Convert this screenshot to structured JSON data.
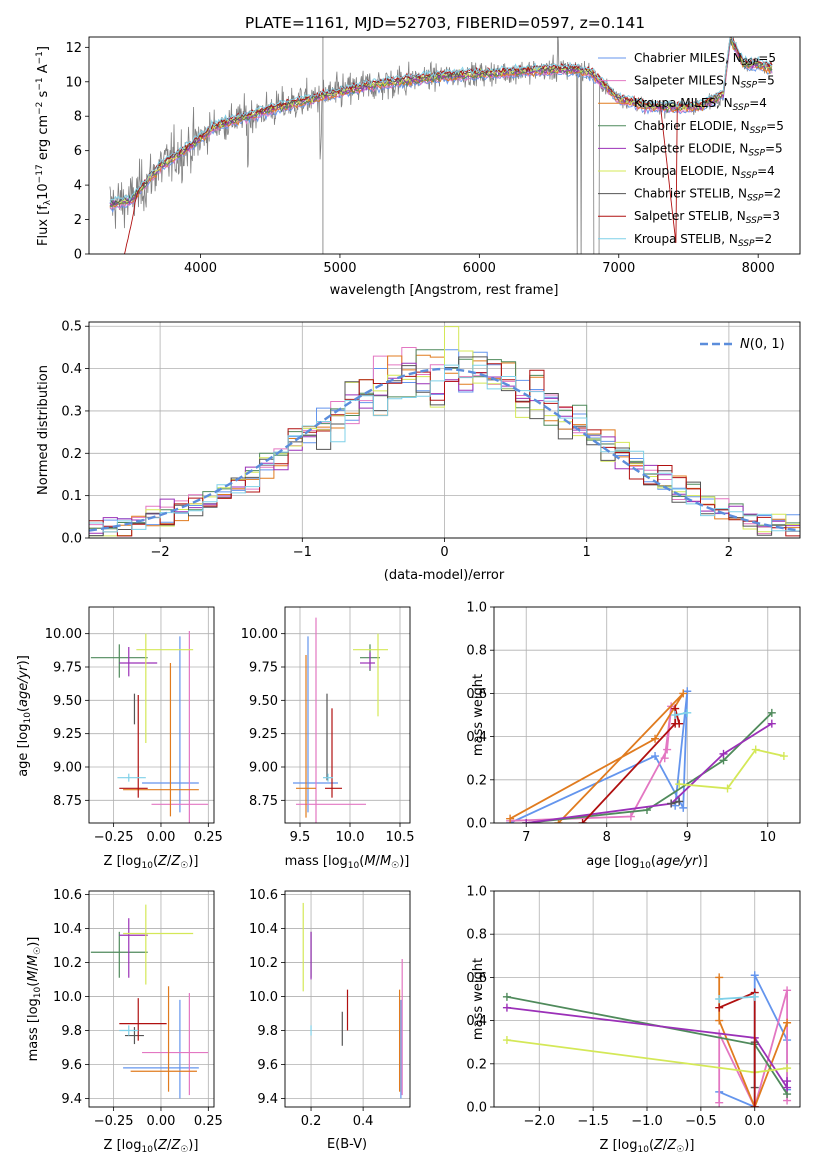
{
  "figure": {
    "title": "PLATE=1161, MJD=52703, FIBERID=0597, z=0.141"
  },
  "series_styles": [
    {
      "name": "Chabrier MILES, N_SSP=5",
      "color": "#6495ED"
    },
    {
      "name": "Salpeter MILES, N_SSP=5",
      "color": "#E377C2"
    },
    {
      "name": "Kroupa MILES, N_SSP=4",
      "color": "#E07B1F"
    },
    {
      "name": "Chabrier ELODIE, N_SSP=5",
      "color": "#4F8A5B"
    },
    {
      "name": "Salpeter ELODIE, N_SSP=5",
      "color": "#9B30B8"
    },
    {
      "name": "Kroupa ELODIE, N_SSP=4",
      "color": "#D4E857"
    },
    {
      "name": "Chabrier STELIB, N_SSP=2",
      "color": "#555555"
    },
    {
      "name": "Salpeter STELIB, N_SSP=3",
      "color": "#B01010"
    },
    {
      "name": "Kroupa STELIB, N_SSP=2",
      "color": "#7FD0E8"
    }
  ],
  "chart_data": [
    {
      "id": "spectrum",
      "type": "line",
      "title": "PLATE=1161, MJD=52703, FIBERID=0597, z=0.141",
      "xlabel": "wavelength [Angstrom, rest frame]",
      "ylabel": "Flux [f_λ 10^-17 erg cm^-2 s^-1 A^-1]",
      "xlim": [
        3200,
        8300
      ],
      "ylim": [
        0,
        12.6
      ],
      "xticks": [
        4000,
        5000,
        6000,
        7000,
        8000
      ],
      "yticks": [
        0,
        2,
        4,
        6,
        8,
        10,
        12
      ],
      "grid": false,
      "legend_position": "right",
      "data_color": "#808080",
      "series": [
        {
          "name": "Chabrier MILES",
          "nssp": "5"
        },
        {
          "name": "Salpeter MILES",
          "nssp": "5"
        },
        {
          "name": "Kroupa MILES",
          "nssp": "4"
        },
        {
          "name": "Chabrier ELODIE",
          "nssp": "5"
        },
        {
          "name": "Salpeter ELODIE",
          "nssp": "5"
        },
        {
          "name": "Kroupa ELODIE",
          "nssp": "4"
        },
        {
          "name": "Chabrier STELIB",
          "nssp": "2"
        },
        {
          "name": "Salpeter STELIB",
          "nssp": "3"
        },
        {
          "name": "Kroupa STELIB",
          "nssp": "2"
        }
      ],
      "continuum": {
        "x": [
          3350,
          3500,
          3700,
          3900,
          4100,
          4300,
          4500,
          4700,
          4900,
          5100,
          5300,
          5500,
          5700,
          5900,
          6100,
          6300,
          6500,
          6600,
          6700,
          6800,
          6900,
          7000,
          7200,
          7400,
          7600,
          7750,
          7800,
          7900,
          8000,
          8100
        ],
        "y": [
          2.9,
          3.1,
          5.0,
          6.1,
          7.4,
          7.9,
          8.4,
          8.8,
          9.2,
          9.6,
          9.9,
          10.1,
          10.3,
          10.4,
          10.5,
          10.6,
          10.7,
          10.7,
          10.7,
          10.5,
          9.8,
          9.0,
          8.6,
          8.5,
          8.6,
          9.3,
          12.5,
          11.0,
          11.0,
          10.8
        ]
      }
    },
    {
      "id": "residuals",
      "type": "histogram",
      "xlabel": "(data-model)/error",
      "ylabel": "Normed distribution",
      "xlim": [
        -2.5,
        2.5
      ],
      "ylim": [
        0,
        0.51
      ],
      "xticks": [
        -2,
        -1,
        0,
        1,
        2
      ],
      "yticks": [
        0.0,
        0.1,
        0.2,
        0.3,
        0.4,
        0.5
      ],
      "grid": true,
      "legend_position": "top-right",
      "reference_curve": {
        "name": "N(0,1)",
        "mean": 0,
        "sigma": 1,
        "color": "#5B8DDB"
      },
      "bin_width": 0.1
    },
    {
      "id": "age_vs_Z",
      "type": "errorbar",
      "xlabel": "Z [log10(Z/Z☉)]",
      "ylabel": "age [log10(age/yr)]",
      "xlim": [
        -0.38,
        0.28
      ],
      "ylim": [
        8.58,
        10.2
      ],
      "xticks": [
        -0.25,
        0.0,
        0.25
      ],
      "yticks": [
        8.75,
        9.0,
        9.25,
        9.5,
        9.75,
        10.0
      ],
      "grid": true,
      "points": [
        {
          "series": 0,
          "x": 0.1,
          "y": 8.88,
          "xerr": [
            0.2,
            0.1
          ],
          "yerr": [
            0.22,
            1.1
          ]
        },
        {
          "series": 1,
          "x": 0.15,
          "y": 8.72,
          "xerr": [
            0.2,
            0.1
          ],
          "yerr": [
            0.15,
            1.3
          ]
        },
        {
          "series": 2,
          "x": 0.05,
          "y": 8.83,
          "xerr": [
            0.25,
            0.15
          ],
          "yerr": [
            0.2,
            0.95
          ]
        },
        {
          "series": 3,
          "x": -0.22,
          "y": 9.82,
          "xerr": [
            0.15,
            0.15
          ],
          "yerr": [
            0.15,
            0.1
          ]
        },
        {
          "series": 4,
          "x": -0.17,
          "y": 9.78,
          "xerr": [
            0.05,
            0.15
          ],
          "yerr": [
            0.1,
            0.12
          ]
        },
        {
          "series": 5,
          "x": -0.08,
          "y": 9.88,
          "xerr": [
            0.05,
            0.25
          ],
          "yerr": [
            0.7,
            0.12
          ]
        },
        {
          "series": 6,
          "x": -0.14,
          "y": 9.5,
          "xerr": [
            0.0,
            0.0
          ],
          "yerr": [
            0.18,
            0.05
          ]
        },
        {
          "series": 7,
          "x": -0.12,
          "y": 8.84,
          "xerr": [
            0.1,
            0.05
          ],
          "yerr": [
            0.07,
            0.7
          ]
        },
        {
          "series": 8,
          "x": -0.17,
          "y": 8.92,
          "xerr": [
            0.06,
            0.09
          ],
          "yerr": [
            0.03,
            0.03
          ]
        }
      ]
    },
    {
      "id": "age_vs_mass",
      "type": "errorbar",
      "xlabel": "mass [log10(M/M☉)]",
      "xlim": [
        9.35,
        10.6
      ],
      "ylim": [
        8.58,
        10.2
      ],
      "xticks": [
        9.5,
        10.0,
        10.5
      ],
      "yticks": [
        8.75,
        9.0,
        9.25,
        9.5,
        9.75,
        10.0
      ],
      "grid": true,
      "points": [
        {
          "series": 0,
          "x": 9.58,
          "y": 8.88,
          "xerr": [
            0.15,
            0.3
          ],
          "yerr": [
            0.22,
            1.1
          ]
        },
        {
          "series": 1,
          "x": 9.66,
          "y": 8.72,
          "xerr": [
            0.2,
            0.5
          ],
          "yerr": [
            0.15,
            1.4
          ]
        },
        {
          "series": 2,
          "x": 9.56,
          "y": 8.84,
          "xerr": [
            0.1,
            0.1
          ],
          "yerr": [
            0.22,
            1.0
          ]
        },
        {
          "series": 3,
          "x": 10.2,
          "y": 9.82,
          "xerr": [
            0.1,
            0.1
          ],
          "yerr": [
            0.1,
            0.1
          ]
        },
        {
          "series": 4,
          "x": 10.2,
          "y": 9.78,
          "xerr": [
            0.1,
            0.05
          ],
          "yerr": [
            0.05,
            0.08
          ]
        },
        {
          "series": 5,
          "x": 10.28,
          "y": 9.88,
          "xerr": [
            0.25,
            0.1
          ],
          "yerr": [
            0.5,
            0.12
          ]
        },
        {
          "series": 6,
          "x": 9.77,
          "y": 9.5,
          "xerr": [
            0.0,
            0.0
          ],
          "yerr": [
            0.6,
            0.05
          ]
        },
        {
          "series": 7,
          "x": 9.82,
          "y": 8.84,
          "xerr": [
            0.07,
            0.1
          ],
          "yerr": [
            0.07,
            0.6
          ]
        },
        {
          "series": 8,
          "x": 9.78,
          "y": 8.92,
          "xerr": [
            0.05,
            0.05
          ],
          "yerr": [
            0.03,
            0.03
          ]
        }
      ]
    },
    {
      "id": "weight_vs_age",
      "type": "line",
      "xlabel": "age [log10(age/yr)]",
      "ylabel": "mass weight",
      "xlim": [
        6.6,
        10.4
      ],
      "ylim": [
        0,
        1
      ],
      "xticks": [
        7,
        8,
        9,
        10
      ],
      "yticks": [
        0.0,
        0.2,
        0.4,
        0.6,
        0.8,
        1.0
      ],
      "grid": true,
      "series": [
        {
          "series": 0,
          "x": [
            6.8,
            8.6,
            8.95,
            9.0,
            8.85
          ],
          "y": [
            0.0,
            0.31,
            0.07,
            0.61,
            0.08
          ]
        },
        {
          "series": 1,
          "x": 6.8,
          "y": 0.0,
          "xlist": [
            6.8,
            8.3,
            8.75,
            8.8,
            8.72
          ],
          "ylist": [
            0.01,
            0.03,
            0.34,
            0.54,
            0.3
          ]
        },
        {
          "series": 2,
          "x": [
            6.8,
            8.6,
            8.95,
            7.4
          ],
          "y": [
            0.02,
            0.39,
            0.6,
            0.0
          ]
        },
        {
          "series": 3,
          "x": [
            7.0,
            8.5,
            9.45,
            10.05
          ],
          "y": [
            0.0,
            0.06,
            0.29,
            0.51
          ]
        },
        {
          "series": 4,
          "x": [
            7.0,
            8.8,
            9.45,
            10.05
          ],
          "y": [
            0.0,
            0.09,
            0.32,
            0.46
          ]
        },
        {
          "series": 5,
          "x": [
            8.9,
            9.5,
            9.85,
            10.2
          ],
          "y": [
            0.18,
            0.16,
            0.34,
            0.31
          ]
        },
        {
          "series": 6,
          "x": [
            8.8,
            8.9
          ],
          "y": [
            0.09,
            0.1
          ]
        },
        {
          "series": 7,
          "x": [
            7.7,
            8.85,
            8.85,
            8.9
          ],
          "y": [
            0.0,
            0.46,
            0.53,
            0.46
          ]
        },
        {
          "series": 8,
          "x": [
            8.85,
            9.0
          ],
          "y": [
            0.5,
            0.51
          ]
        }
      ]
    },
    {
      "id": "mass_vs_Z",
      "type": "errorbar",
      "xlabel": "Z [log10(Z/Z☉)]",
      "ylabel": "mass [log10(M/M☉)]",
      "xlim": [
        -0.38,
        0.28
      ],
      "ylim": [
        9.35,
        10.62
      ],
      "xticks": [
        -0.25,
        0.0,
        0.25
      ],
      "yticks": [
        9.4,
        9.6,
        9.8,
        10.0,
        10.2,
        10.4,
        10.6
      ],
      "grid": true,
      "points": [
        {
          "series": 0,
          "x": 0.1,
          "y": 9.58,
          "xerr": [
            0.3,
            0.1
          ],
          "yerr": [
            0.18,
            0.4
          ]
        },
        {
          "series": 1,
          "x": 0.15,
          "y": 9.67,
          "xerr": [
            0.25,
            0.1
          ],
          "yerr": [
            0.25,
            0.35
          ]
        },
        {
          "series": 2,
          "x": 0.04,
          "y": 9.56,
          "xerr": [
            0.2,
            0.15
          ],
          "yerr": [
            0.12,
            0.5
          ]
        },
        {
          "series": 3,
          "x": -0.22,
          "y": 10.26,
          "xerr": [
            0.15,
            0.15
          ],
          "yerr": [
            0.15,
            0.12
          ]
        },
        {
          "series": 4,
          "x": -0.17,
          "y": 10.36,
          "xerr": [
            0.05,
            0.1
          ],
          "yerr": [
            0.25,
            0.1
          ]
        },
        {
          "series": 5,
          "x": -0.08,
          "y": 10.37,
          "xerr": [
            0.12,
            0.25
          ],
          "yerr": [
            0.3,
            0.17
          ]
        },
        {
          "series": 6,
          "x": -0.14,
          "y": 9.77,
          "xerr": [
            0.05,
            0.05
          ],
          "yerr": [
            0.05,
            0.05
          ]
        },
        {
          "series": 7,
          "x": -0.12,
          "y": 9.84,
          "xerr": [
            0.1,
            0.15
          ],
          "yerr": [
            0.1,
            0.15
          ]
        },
        {
          "series": 8,
          "x": -0.17,
          "y": 9.8,
          "xerr": [
            0.05,
            0.05
          ],
          "yerr": [
            0.03,
            0.03
          ]
        }
      ]
    },
    {
      "id": "mass_vs_EBV",
      "type": "errorbar",
      "xlabel": "E(B-V)",
      "xlim": [
        0.1,
        0.58
      ],
      "ylim": [
        9.35,
        10.62
      ],
      "xticks": [
        0.2,
        0.4
      ],
      "yticks": [
        9.4,
        9.6,
        9.8,
        10.0,
        10.2,
        10.4,
        10.6
      ],
      "grid": true,
      "points": [
        {
          "series": 0,
          "x": 0.545,
          "y": 9.58,
          "xerr": [
            0,
            0
          ],
          "yerr": [
            0.18,
            0.4
          ]
        },
        {
          "series": 1,
          "x": 0.55,
          "y": 9.67,
          "xerr": [
            0,
            0
          ],
          "yerr": [
            0.25,
            0.55
          ]
        },
        {
          "series": 2,
          "x": 0.54,
          "y": 9.56,
          "xerr": [
            0,
            0
          ],
          "yerr": [
            0.12,
            0.48
          ]
        },
        {
          "series": 3,
          "x": 0.2,
          "y": 10.26,
          "xerr": [
            0,
            0
          ],
          "yerr": [
            0.15,
            0.12
          ]
        },
        {
          "series": 4,
          "x": 0.2,
          "y": 10.3,
          "xerr": [
            0,
            0
          ],
          "yerr": [
            0.2,
            0.08
          ]
        },
        {
          "series": 5,
          "x": 0.17,
          "y": 10.3,
          "xerr": [
            0,
            0
          ],
          "yerr": [
            0.27,
            0.25
          ]
        },
        {
          "series": 6,
          "x": 0.32,
          "y": 9.81,
          "xerr": [
            0,
            0
          ],
          "yerr": [
            0.1,
            0.1
          ]
        },
        {
          "series": 7,
          "x": 0.34,
          "y": 9.9,
          "xerr": [
            0,
            0
          ],
          "yerr": [
            0.1,
            0.14
          ]
        },
        {
          "series": 8,
          "x": 0.2,
          "y": 9.8,
          "xerr": [
            0,
            0
          ],
          "yerr": [
            0.03,
            0.03
          ]
        }
      ]
    },
    {
      "id": "weight_vs_Z",
      "type": "line",
      "xlabel": "Z [log10(Z/Z☉)]",
      "ylabel": "mass weight",
      "xlim": [
        -2.42,
        0.42
      ],
      "ylim": [
        0,
        1
      ],
      "xticks": [
        -2.0,
        -1.5,
        -1.0,
        -0.5,
        0.0
      ],
      "yticks": [
        0.0,
        0.2,
        0.4,
        0.6,
        0.8,
        1.0
      ],
      "grid": true,
      "series": [
        {
          "series": 0,
          "x": [
            -0.33,
            0.0,
            0.0,
            0.3,
            0.3
          ],
          "y": [
            0.07,
            0.0,
            0.61,
            0.31,
            0.08
          ]
        },
        {
          "series": 1,
          "x": [
            -0.33,
            -0.33,
            0.0,
            0.3,
            0.3
          ],
          "y": [
            0.02,
            0.34,
            0.0,
            0.54,
            0.03
          ]
        },
        {
          "series": 2,
          "x": [
            -0.33,
            -0.33,
            0.0,
            0.3
          ],
          "y": [
            0.6,
            0.4,
            0.0,
            0.39
          ]
        },
        {
          "series": 3,
          "x": [
            -2.3,
            0.0,
            0.3
          ],
          "y": [
            0.51,
            0.29,
            0.06
          ]
        },
        {
          "series": 4,
          "x": [
            -2.3,
            0.0,
            0.3,
            0.3
          ],
          "y": [
            0.46,
            0.32,
            0.09,
            0.12
          ]
        },
        {
          "series": 5,
          "x": [
            -2.3,
            0.0,
            0.3
          ],
          "y": [
            0.31,
            0.16,
            0.18
          ]
        },
        {
          "series": 6,
          "x": [
            0.0,
            0.0
          ],
          "y": [
            0.09,
            0.3
          ]
        },
        {
          "series": 7,
          "x": [
            -0.33,
            0.0,
            0.0
          ],
          "y": [
            0.46,
            0.53,
            0.0
          ]
        },
        {
          "series": 8,
          "x": [
            -0.33,
            0.0
          ],
          "y": [
            0.5,
            0.51
          ]
        }
      ]
    }
  ]
}
